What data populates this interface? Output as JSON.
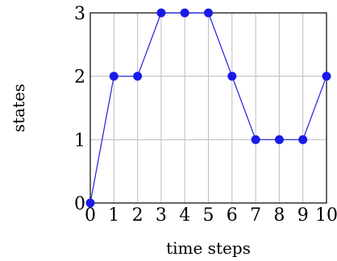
{
  "chart_data": {
    "type": "line",
    "title": "",
    "xlabel": "time steps",
    "ylabel": "states",
    "xlim": [
      0,
      10
    ],
    "ylim": [
      0,
      3
    ],
    "x_ticks": [
      "0",
      "1",
      "2",
      "3",
      "4",
      "5",
      "6",
      "7",
      "8",
      "9",
      "10"
    ],
    "y_ticks": [
      "0",
      "1",
      "2",
      "3"
    ],
    "grid": true,
    "series": [
      {
        "x": [
          0,
          1,
          2,
          3,
          4,
          5,
          6,
          7,
          8,
          9,
          10
        ],
        "values": [
          0,
          2,
          2,
          3,
          3,
          3,
          2,
          1,
          1,
          1,
          2
        ],
        "color": "#1a1ae6",
        "marker": "circle"
      }
    ]
  }
}
